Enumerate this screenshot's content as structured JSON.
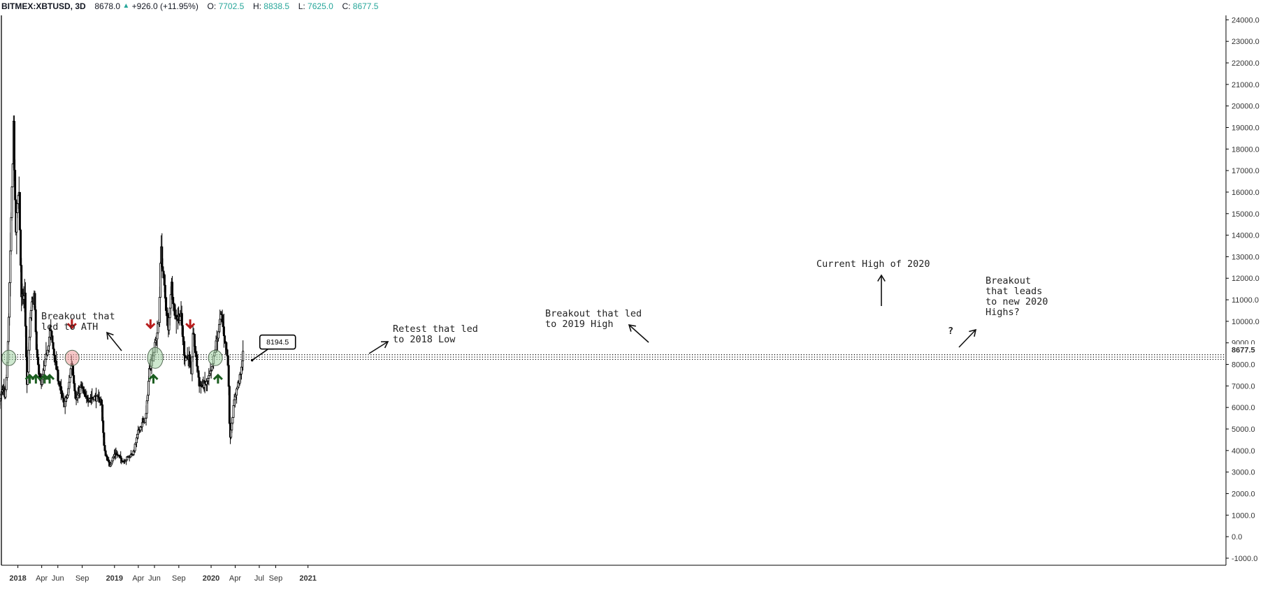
{
  "header": {
    "symbol": "BITMEX:XBTUSD, 3D",
    "last": "8678.0",
    "change": "+926.0 (+11.95%)",
    "o_label": "O:",
    "o_value": "7702.5",
    "h_label": "H:",
    "h_value": "8838.5",
    "l_label": "L:",
    "l_value": "7625.0",
    "c_label": "C:",
    "c_value": "8677.5",
    "up_icon": "triangle-up-icon"
  },
  "colors": {
    "candle": "#000000",
    "green_arrow": "#1b5e20",
    "red_arrow": "#b71c1c",
    "circle_fill": "#a5d6a7",
    "circle_red_fill": "#ef9a9a",
    "price_tag_bg": "#ffffff"
  },
  "chart_data": {
    "type": "candlestick",
    "symbol": "BITMEX:XBTUSD",
    "interval": "3D",
    "ylim": [
      -1500,
      24300
    ],
    "y_ticks": [
      "24000.0",
      "23000.0",
      "22000.0",
      "21000.0",
      "20000.0",
      "19000.0",
      "18000.0",
      "17000.0",
      "16000.0",
      "15000.0",
      "14000.0",
      "13000.0",
      "12000.0",
      "11000.0",
      "10000.0",
      "9000.0",
      "8000.0",
      "7000.0",
      "6000.0",
      "5000.0",
      "4000.0",
      "3000.0",
      "2000.0",
      "1000.0",
      "0.0",
      "-1000.0"
    ],
    "last_price_label": "8677.5",
    "x_ticks": [
      {
        "label": "Sep",
        "date": "2017-09-01"
      },
      {
        "label": "2018",
        "date": "2018-01-01"
      },
      {
        "label": "Apr",
        "date": "2018-04-01"
      },
      {
        "label": "Jun",
        "date": "2018-06-01"
      },
      {
        "label": "Sep",
        "date": "2018-09-01"
      },
      {
        "label": "2019",
        "date": "2019-01-01"
      },
      {
        "label": "Apr",
        "date": "2019-04-01"
      },
      {
        "label": "Jun",
        "date": "2019-06-01"
      },
      {
        "label": "Sep",
        "date": "2019-09-01"
      },
      {
        "label": "2020",
        "date": "2020-01-01"
      },
      {
        "label": "Apr",
        "date": "2020-04-01"
      },
      {
        "label": "Jul",
        "date": "2020-07-01"
      },
      {
        "label": "Sep",
        "date": "2020-09-01"
      },
      {
        "label": "2021",
        "date": "2021-01-01"
      }
    ],
    "price_path": [
      [
        "2017-07-05",
        2600
      ],
      [
        "2017-07-16",
        2000
      ],
      [
        "2017-08-05",
        3200
      ],
      [
        "2017-08-20",
        4200
      ],
      [
        "2017-09-01",
        4700
      ],
      [
        "2017-09-15",
        3300
      ],
      [
        "2017-10-01",
        4300
      ],
      [
        "2017-10-20",
        6000
      ],
      [
        "2017-11-10",
        7000
      ],
      [
        "2017-11-15",
        6300
      ],
      [
        "2017-11-25",
        8500
      ],
      [
        "2017-12-07",
        14000
      ],
      [
        "2017-12-17",
        19200
      ],
      [
        "2017-12-25",
        14000
      ],
      [
        "2018-01-06",
        16500
      ],
      [
        "2018-01-16",
        11000
      ],
      [
        "2018-01-28",
        11200
      ],
      [
        "2018-02-06",
        7000
      ],
      [
        "2018-02-20",
        10500
      ],
      [
        "2018-03-05",
        11200
      ],
      [
        "2018-03-15",
        8300
      ],
      [
        "2018-04-01",
        7000
      ],
      [
        "2018-04-15",
        8000
      ],
      [
        "2018-05-05",
        9600
      ],
      [
        "2018-05-20",
        8400
      ],
      [
        "2018-06-01",
        7500
      ],
      [
        "2018-06-25",
        6100
      ],
      [
        "2018-07-10",
        6600
      ],
      [
        "2018-07-25",
        8200
      ],
      [
        "2018-08-10",
        6300
      ],
      [
        "2018-08-30",
        7000
      ],
      [
        "2018-09-15",
        6400
      ],
      [
        "2018-10-15",
        6500
      ],
      [
        "2018-11-14",
        6300
      ],
      [
        "2018-11-25",
        4000
      ],
      [
        "2018-12-15",
        3300
      ],
      [
        "2019-01-05",
        3900
      ],
      [
        "2019-02-05",
        3500
      ],
      [
        "2019-03-15",
        3900
      ],
      [
        "2019-04-05",
        5000
      ],
      [
        "2019-05-01",
        5500
      ],
      [
        "2019-05-15",
        7900
      ],
      [
        "2019-05-30",
        8500
      ],
      [
        "2019-06-20",
        10000
      ],
      [
        "2019-06-26",
        13500
      ],
      [
        "2019-07-10",
        11500
      ],
      [
        "2019-07-25",
        9500
      ],
      [
        "2019-08-05",
        11800
      ],
      [
        "2019-08-20",
        10200
      ],
      [
        "2019-09-10",
        10300
      ],
      [
        "2019-09-25",
        8300
      ],
      [
        "2019-10-10",
        8400
      ],
      [
        "2019-10-20",
        7400
      ],
      [
        "2019-10-26",
        9500
      ],
      [
        "2019-11-20",
        7000
      ],
      [
        "2019-12-15",
        7100
      ],
      [
        "2020-01-05",
        7700
      ],
      [
        "2020-01-20",
        8900
      ],
      [
        "2020-02-10",
        10300
      ],
      [
        "2020-03-01",
        8600
      ],
      [
        "2020-03-08",
        7800
      ],
      [
        "2020-03-13",
        4500
      ],
      [
        "2020-04-01",
        6500
      ],
      [
        "2020-04-25",
        7600
      ],
      [
        "2020-05-01",
        8677
      ]
    ],
    "support_zone": {
      "low": 8230,
      "high": 8450
    },
    "price_tag": {
      "value": "8194.5",
      "price": 8194.5,
      "date": "2020-06-04"
    },
    "annotations": [
      {
        "text": [
          "Breakout that",
          "led to ATH"
        ]
      },
      {
        "text": [
          "Retest that led",
          "to 2018 Low"
        ]
      },
      {
        "text": [
          "Breakout that led",
          "to 2019 High"
        ]
      },
      {
        "text": [
          "Current High of 2020"
        ]
      },
      {
        "text": [
          "Breakout",
          "that leads",
          "to new 2020",
          "Highs?"
        ]
      },
      {
        "text": [
          "?"
        ]
      }
    ],
    "circle_dates": [
      "2017-11-28",
      "2018-07-25",
      "2019-06-04",
      "2020-01-17"
    ],
    "green_up_arrow_dates": [
      "2018-02-15",
      "2018-03-10",
      "2018-04-12",
      "2018-05-01",
      "2019-05-28",
      "2020-01-27"
    ],
    "red_down_arrow_dates": [
      "2018-07-24",
      "2019-05-17",
      "2019-10-14"
    ]
  }
}
